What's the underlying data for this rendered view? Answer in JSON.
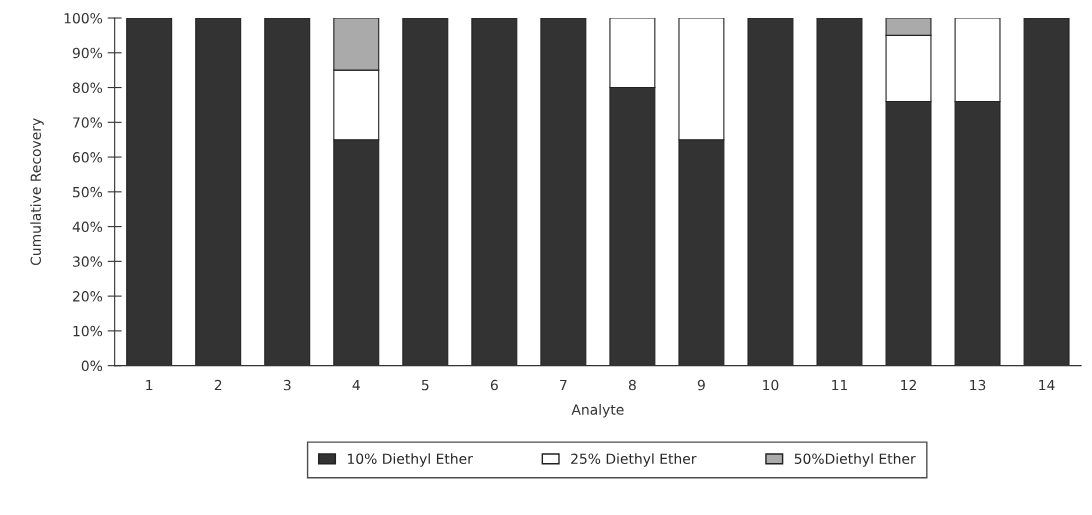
{
  "chart_data": {
    "type": "bar",
    "stacked": true,
    "xlabel": "Analyte",
    "ylabel": "Cumulative Recovery",
    "categories": [
      "1",
      "2",
      "3",
      "4",
      "5",
      "6",
      "7",
      "8",
      "9",
      "10",
      "11",
      "12",
      "13",
      "14"
    ],
    "series": [
      {
        "name": "10% Diethyl Ether",
        "color": "#333333",
        "values": [
          100,
          100,
          100,
          65,
          100,
          100,
          100,
          80,
          65,
          100,
          100,
          76,
          76,
          100
        ]
      },
      {
        "name": "25% Diethyl Ether",
        "color": "#ffffff",
        "values": [
          0,
          0,
          0,
          20,
          0,
          0,
          0,
          20,
          35,
          0,
          0,
          19,
          24,
          0
        ]
      },
      {
        "name": "50%Diethyl Ether",
        "color": "#aaaaaa",
        "values": [
          0,
          0,
          0,
          15,
          0,
          0,
          0,
          0,
          0,
          0,
          0,
          5,
          0,
          0
        ]
      }
    ],
    "ylim": [
      0,
      100
    ],
    "yticks": [
      {
        "value": 0,
        "label": "0%"
      },
      {
        "value": 10,
        "label": "10%"
      },
      {
        "value": 20,
        "label": "20%"
      },
      {
        "value": 30,
        "label": "30%"
      },
      {
        "value": 40,
        "label": "40%"
      },
      {
        "value": 50,
        "label": "50%"
      },
      {
        "value": 60,
        "label": "60%"
      },
      {
        "value": 70,
        "label": "70%"
      },
      {
        "value": 80,
        "label": "80%"
      },
      {
        "value": 90,
        "label": "90%"
      },
      {
        "value": 100,
        "label": "100%"
      }
    ],
    "grid": false,
    "legend": "bottom"
  }
}
